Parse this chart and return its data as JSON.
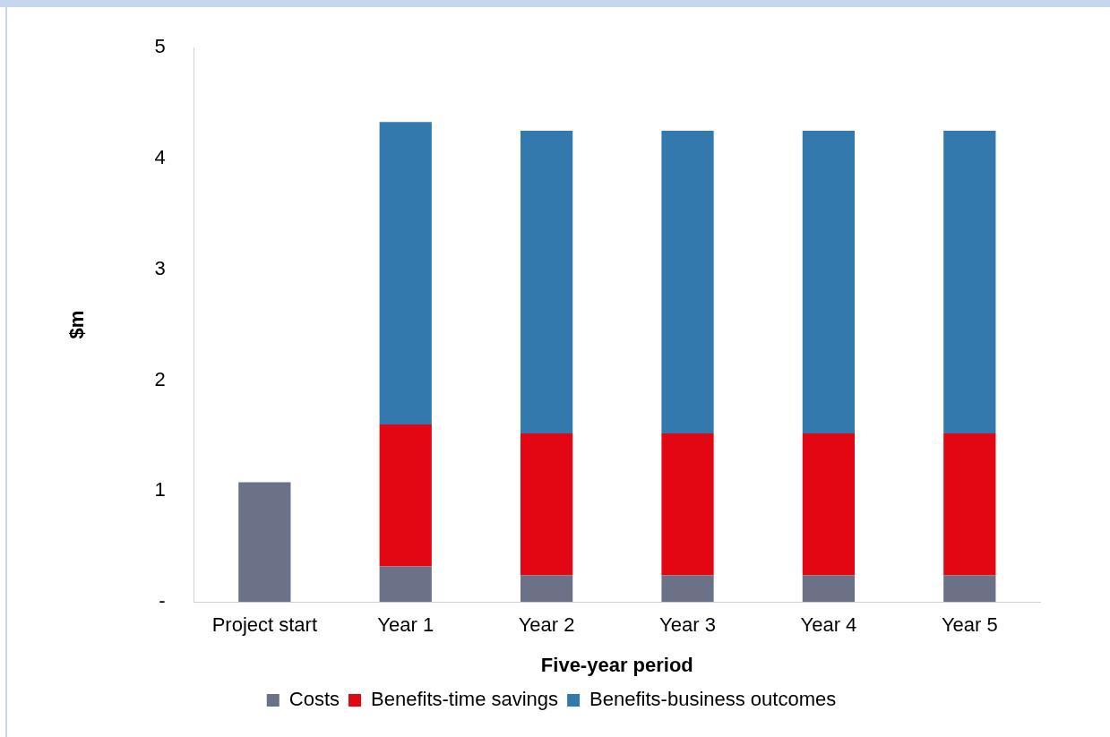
{
  "chart_data": {
    "type": "bar",
    "stacked": true,
    "xlabel": "Five-year period",
    "ylabel": "$m",
    "categories": [
      "Project start",
      "Year 1",
      "Year 2",
      "Year 3",
      "Year 4",
      "Year 5"
    ],
    "series": [
      {
        "name": "Costs",
        "color": "#6b7287",
        "values": [
          1.08,
          0.32,
          0.24,
          0.24,
          0.24,
          0.24
        ]
      },
      {
        "name": "Benefits-time savings",
        "color": "#e30613",
        "values": [
          0,
          1.28,
          1.28,
          1.28,
          1.28,
          1.28
        ]
      },
      {
        "name": "Benefits-business outcomes",
        "color": "#3479ad",
        "values": [
          0,
          2.73,
          2.73,
          2.73,
          2.73,
          2.73
        ]
      }
    ],
    "ylim": [
      0,
      5
    ],
    "yticks": [
      {
        "value": 0,
        "label": "-"
      },
      1,
      2,
      3,
      4,
      5
    ],
    "grid": false,
    "legend": "bottom"
  }
}
